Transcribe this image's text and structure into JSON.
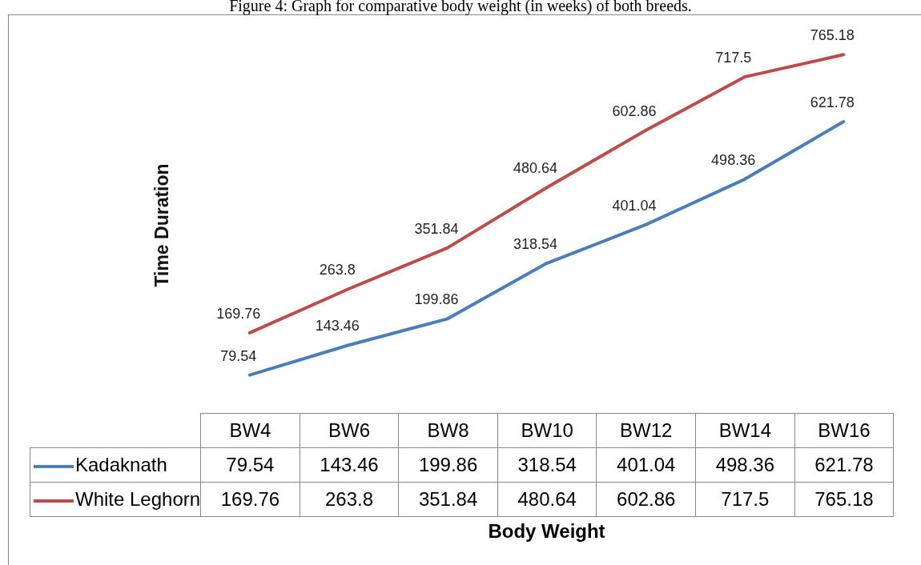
{
  "chart_data": {
    "type": "line",
    "title": "Figure 4: Graph for comparative body weight (in weeks) of both breeds.",
    "xlabel": "Body Weight",
    "ylabel": "Time Duration",
    "categories": [
      "BW4",
      "BW6",
      "BW8",
      "BW10",
      "BW12",
      "BW14",
      "BW16"
    ],
    "series": [
      {
        "name": "Kadaknath",
        "color": "#4a7ebb",
        "values": [
          79.54,
          143.46,
          199.86,
          318.54,
          401.04,
          498.36,
          621.78
        ],
        "value_labels": [
          "79.54",
          "143.46",
          "199.86",
          "318.54",
          "401.04",
          "498.36",
          "621.78"
        ]
      },
      {
        "name": "White Leghorn",
        "color": "#be4b48",
        "values": [
          169.76,
          263.8,
          351.84,
          480.64,
          602.86,
          717.5,
          765.18
        ],
        "value_labels": [
          "169.76",
          "263.8",
          "351.84",
          "480.64",
          "602.86",
          "717.5",
          "765.18"
        ]
      }
    ],
    "tick_labels": "x",
    "grid": false,
    "legend": "bottom left",
    "marker": "none",
    "line_style": "solid"
  }
}
